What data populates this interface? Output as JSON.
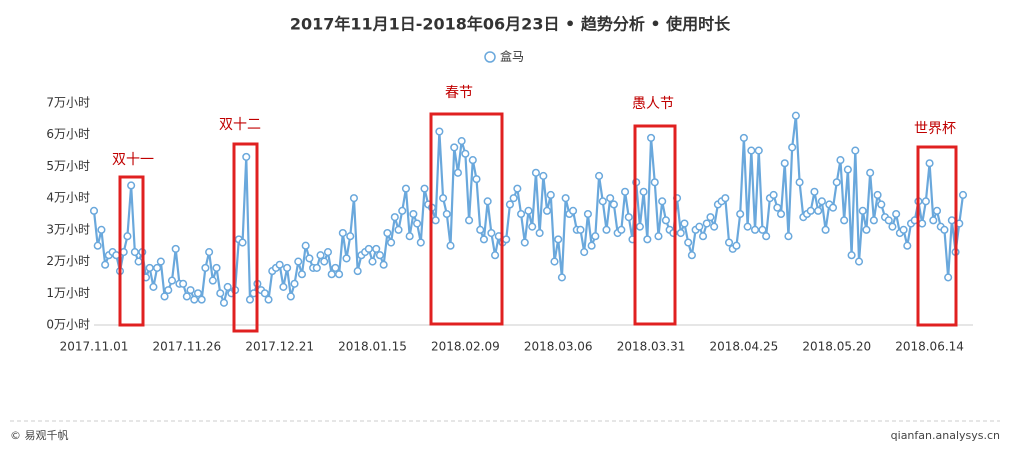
{
  "chart_data": {
    "type": "line",
    "title": "2017年11月1日-2018年06月23日 • 趋势分析 • 使用时长",
    "categories": [
      "2017.11.01",
      null,
      null,
      null,
      null,
      null,
      null,
      null,
      null,
      null,
      null,
      null,
      null,
      null,
      null,
      null,
      null,
      null,
      null,
      null,
      null,
      null,
      null,
      null,
      null,
      "2017.11.26",
      null,
      null,
      null,
      null,
      null,
      null,
      null,
      null,
      null,
      null,
      null,
      null,
      null,
      null,
      null,
      null,
      null,
      null,
      null,
      null,
      null,
      null,
      null,
      null,
      "2017.12.21",
      null,
      null,
      null,
      null,
      null,
      null,
      null,
      null,
      null,
      null,
      null,
      null,
      null,
      null,
      null,
      null,
      null,
      null,
      null,
      null,
      null,
      null,
      null,
      null,
      "2018.01.15",
      null,
      null,
      null,
      null,
      null,
      null,
      null,
      null,
      null,
      null,
      null,
      null,
      null,
      null,
      null,
      null,
      null,
      null,
      null,
      null,
      null,
      null,
      null,
      null,
      "2018.02.09",
      null,
      null,
      null,
      null,
      null,
      null,
      null,
      null,
      null,
      null,
      null,
      null,
      null,
      null,
      null,
      null,
      null,
      null,
      null,
      null,
      null,
      null,
      null,
      null,
      "2018.03.06",
      null,
      null,
      null,
      null,
      null,
      null,
      null,
      null,
      null,
      null,
      null,
      null,
      null,
      null,
      null,
      null,
      null,
      null,
      null,
      null,
      null,
      null,
      null,
      null,
      "2018.03.31",
      null,
      null,
      null,
      null,
      null,
      null,
      null,
      null,
      null,
      null,
      null,
      null,
      null,
      null,
      null,
      null,
      null,
      null,
      null,
      null,
      null,
      null,
      null,
      null,
      "2018.04.25",
      null,
      null,
      null,
      null,
      null,
      null,
      null,
      null,
      null,
      null,
      null,
      null,
      null,
      null,
      null,
      null,
      null,
      null,
      null,
      null,
      null,
      null,
      null,
      null,
      "2018.05.20",
      null,
      null,
      null,
      null,
      null,
      null,
      null,
      null,
      null,
      null,
      null,
      null,
      null,
      null,
      null,
      null,
      null,
      null,
      null,
      null,
      null,
      null,
      null,
      null,
      "2018.06.14",
      null,
      null,
      null,
      null,
      null,
      null,
      null,
      null,
      null
    ],
    "series": [
      {
        "name": "盒马",
        "color": "#6aa8dc",
        "values": [
          3.6,
          2.5,
          3.0,
          1.9,
          2.2,
          2.3,
          2.2,
          1.7,
          2.3,
          2.8,
          4.4,
          2.3,
          2.0,
          2.3,
          1.5,
          1.8,
          1.2,
          1.8,
          2.0,
          0.9,
          1.1,
          1.4,
          2.4,
          1.3,
          1.3,
          0.9,
          1.1,
          0.8,
          1.0,
          0.8,
          1.8,
          2.3,
          1.4,
          1.8,
          1.0,
          0.7,
          1.2,
          1.0,
          1.1,
          2.7,
          2.6,
          5.3,
          0.8,
          1.0,
          1.3,
          1.1,
          1.0,
          0.8,
          1.7,
          1.8,
          1.9,
          1.2,
          1.8,
          0.9,
          1.3,
          2.0,
          1.6,
          2.5,
          2.1,
          1.8,
          1.8,
          2.2,
          2.0,
          2.3,
          1.6,
          1.8,
          1.6,
          2.9,
          2.1,
          2.8,
          4.0,
          1.7,
          2.2,
          2.3,
          2.4,
          2.0,
          2.4,
          2.2,
          1.9,
          2.9,
          2.6,
          3.4,
          3.0,
          3.6,
          4.3,
          2.8,
          3.5,
          3.2,
          2.6,
          4.3,
          3.8,
          3.7,
          3.3,
          6.1,
          4.0,
          3.5,
          2.5,
          5.6,
          4.8,
          5.8,
          5.4,
          3.3,
          5.2,
          4.6,
          3.0,
          2.7,
          3.9,
          2.9,
          2.2,
          2.8,
          2.6,
          2.7,
          3.8,
          4.0,
          4.3,
          3.5,
          2.6,
          3.6,
          3.1,
          4.8,
          2.9,
          4.7,
          3.6,
          4.1,
          2.0,
          2.7,
          1.5,
          4.0,
          3.5,
          3.6,
          3.0,
          3.0,
          2.3,
          3.5,
          2.5,
          2.8,
          4.7,
          3.9,
          3.0,
          4.0,
          3.8,
          2.9,
          3.0,
          4.2,
          3.4,
          2.7,
          4.5,
          3.1,
          4.2,
          2.7,
          5.9,
          4.5,
          2.8,
          3.9,
          3.3,
          3.0,
          2.9,
          4.0,
          2.9,
          3.2,
          2.6,
          2.2,
          3.0,
          3.1,
          2.8,
          3.2,
          3.4,
          3.1,
          3.8,
          3.9,
          4.0,
          2.6,
          2.4,
          2.5,
          3.5,
          5.9,
          3.1,
          5.5,
          3.0,
          5.5,
          3.0,
          2.8,
          4.0,
          4.1,
          3.7,
          3.5,
          5.1,
          2.8,
          5.6,
          6.6,
          4.5,
          3.4,
          3.5,
          3.6,
          4.2,
          3.6,
          3.9,
          3.0,
          3.8,
          3.7,
          4.5,
          5.2,
          3.3,
          4.9,
          2.2,
          5.5,
          2.0,
          3.6,
          3.0,
          4.8,
          3.3,
          4.1,
          3.8,
          3.4,
          3.3,
          3.1,
          3.5,
          2.9,
          3.0,
          2.5,
          3.2,
          3.3,
          3.9,
          3.2,
          3.9,
          5.1,
          3.3,
          3.6,
          3.1,
          3.0,
          1.5,
          3.3,
          2.3,
          3.2,
          4.1
        ]
      }
    ],
    "ylim": [
      0,
      7
    ],
    "yticks": [
      {
        "value": 0,
        "label": "0万小时"
      },
      {
        "value": 1,
        "label": "1万小时"
      },
      {
        "value": 2,
        "label": "2万小时"
      },
      {
        "value": 3,
        "label": "3万小时"
      },
      {
        "value": 4,
        "label": "4万小时"
      },
      {
        "value": 5,
        "label": "5万小时"
      },
      {
        "value": 6,
        "label": "6万小时"
      },
      {
        "value": 7,
        "label": "7万小时"
      }
    ],
    "annotations": [
      "双十一",
      "双十二",
      "春节",
      "愚人节",
      "世界杯"
    ],
    "footer_left": "© 易观千帆",
    "footer_right": "qianfan.analysys.cn"
  }
}
